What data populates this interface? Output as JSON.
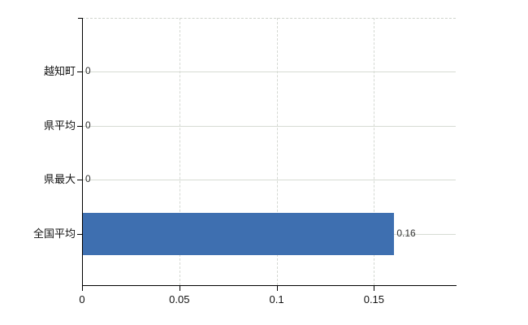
{
  "chart_data": {
    "type": "bar",
    "orientation": "horizontal",
    "title": "",
    "xlabel": "",
    "ylabel": "",
    "categories": [
      "越知町",
      "県平均",
      "県最大",
      "全国平均"
    ],
    "values": [
      0,
      0,
      0,
      0.16
    ],
    "value_labels": [
      "0",
      "0",
      "0",
      "0.16"
    ],
    "x_ticks": [
      0,
      0.05,
      0.1,
      0.15
    ],
    "x_tick_labels": [
      "0",
      "0.05",
      "0.1",
      "0.15"
    ],
    "xlim": [
      0,
      0.192
    ],
    "grid": true,
    "legend": false,
    "bar_color": "#3e6fb0",
    "axis_color": "#000000",
    "grid_color": "#d6dbd3",
    "label_color": "#111111",
    "value_label_color": "#333333",
    "background": "#ffffff"
  }
}
